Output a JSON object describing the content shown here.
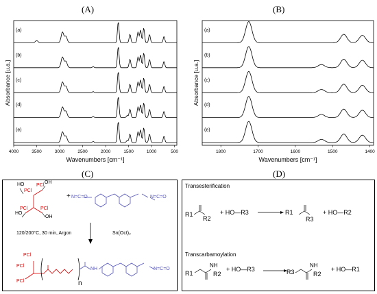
{
  "panels": {
    "A": {
      "letter": "(A)",
      "y_label": "Absorbance [u.a.]",
      "x_label": "Wavenumbers [cm⁻¹]",
      "x_ticks": [
        "4000",
        "3500",
        "3000",
        "2500",
        "2000",
        "1500",
        "1000",
        "500"
      ],
      "traces": [
        "(a)",
        "(b)",
        "(c)",
        "(d)",
        "(e)"
      ]
    },
    "B": {
      "letter": "(B)",
      "y_label": "Absorbance [u.a.]",
      "x_label": "Wavenumbers [cm⁻¹]",
      "x_ticks": [
        "1800",
        "1700",
        "1600",
        "1500",
        "1400"
      ],
      "traces": [
        "(a)",
        "(b)",
        "(c)",
        "(d)",
        "(e)"
      ]
    },
    "C": {
      "letter": "(C)",
      "pcl": "PCl",
      "oh": "HO",
      "oh2": "OH",
      "plus": "+",
      "conditions": "120/200°C, 30 min, Argon",
      "catalyst": "Sn(Oct)₂",
      "n": "n",
      "nh": "NH",
      "nco": "N=C=O"
    },
    "D": {
      "letter": "(D)",
      "transesterification": "Transesterification",
      "transcarbamoylation": "Transcarbamoylation",
      "r1": "R1",
      "r2": "R2",
      "r3": "R3",
      "ho_r3": "+ HO—R3",
      "ho_r2": "+ HO—R2",
      "ho_r1": "+ HO—R1",
      "nh": "NH"
    }
  },
  "chart_data": [
    {
      "type": "line",
      "title": "(A)",
      "xlabel": "Wavenumbers [cm⁻¹]",
      "ylabel": "Absorbance [u.a.]",
      "xlim": [
        4000,
        450
      ],
      "x_reversed": true,
      "series": [
        {
          "name": "(a)",
          "peaks": [
            [
              3500,
              0.1
            ],
            [
              2940,
              0.5
            ],
            [
              2865,
              0.3
            ],
            [
              1725,
              1.0
            ],
            [
              1470,
              0.4
            ],
            [
              1295,
              0.5
            ],
            [
              1240,
              0.6
            ],
            [
              1170,
              0.7
            ],
            [
              1045,
              0.4
            ],
            [
              730,
              0.3
            ]
          ]
        },
        {
          "name": "(b)",
          "peaks": [
            [
              2940,
              0.5
            ],
            [
              2865,
              0.3
            ],
            [
              2270,
              0.05
            ],
            [
              1725,
              1.0
            ],
            [
              1470,
              0.4
            ],
            [
              1295,
              0.5
            ],
            [
              1240,
              0.6
            ],
            [
              1170,
              0.7
            ],
            [
              1045,
              0.4
            ],
            [
              730,
              0.3
            ]
          ]
        },
        {
          "name": "(c)",
          "peaks": [
            [
              2940,
              0.5
            ],
            [
              2865,
              0.3
            ],
            [
              2270,
              0.05
            ],
            [
              1725,
              1.0
            ],
            [
              1470,
              0.4
            ],
            [
              1295,
              0.5
            ],
            [
              1240,
              0.6
            ],
            [
              1170,
              0.7
            ],
            [
              1045,
              0.4
            ],
            [
              730,
              0.3
            ]
          ]
        },
        {
          "name": "(d)",
          "peaks": [
            [
              2940,
              0.5
            ],
            [
              2865,
              0.3
            ],
            [
              2270,
              0.05
            ],
            [
              1725,
              1.0
            ],
            [
              1530,
              0.1
            ],
            [
              1470,
              0.4
            ],
            [
              1295,
              0.5
            ],
            [
              1240,
              0.6
            ],
            [
              1170,
              0.7
            ],
            [
              1045,
              0.4
            ],
            [
              730,
              0.3
            ]
          ]
        },
        {
          "name": "(e)",
          "peaks": [
            [
              2940,
              0.5
            ],
            [
              2865,
              0.3
            ],
            [
              2270,
              0.05
            ],
            [
              1725,
              1.0
            ],
            [
              1530,
              0.1
            ],
            [
              1470,
              0.4
            ],
            [
              1295,
              0.5
            ],
            [
              1240,
              0.6
            ],
            [
              1170,
              0.7
            ],
            [
              1045,
              0.4
            ],
            [
              730,
              0.3
            ]
          ]
        }
      ]
    },
    {
      "type": "line",
      "title": "(B)",
      "xlabel": "Wavenumbers [cm⁻¹]",
      "ylabel": "Absorbance [u.a.]",
      "xlim": [
        1850,
        1390
      ],
      "x_reversed": true,
      "series": [
        {
          "name": "(a)",
          "peaks": [
            [
              1725,
              1.0
            ],
            [
              1470,
              0.4
            ],
            [
              1420,
              0.35
            ]
          ]
        },
        {
          "name": "(b)",
          "peaks": [
            [
              1725,
              1.0
            ],
            [
              1530,
              0.15
            ],
            [
              1470,
              0.4
            ],
            [
              1420,
              0.35
            ]
          ]
        },
        {
          "name": "(c)",
          "peaks": [
            [
              1725,
              1.0
            ],
            [
              1530,
              0.15
            ],
            [
              1470,
              0.4
            ],
            [
              1420,
              0.35
            ]
          ]
        },
        {
          "name": "(d)",
          "peaks": [
            [
              1725,
              1.0
            ],
            [
              1530,
              0.15
            ],
            [
              1470,
              0.4
            ],
            [
              1420,
              0.35
            ]
          ]
        },
        {
          "name": "(e)",
          "peaks": [
            [
              1725,
              1.0
            ],
            [
              1530,
              0.15
            ],
            [
              1470,
              0.4
            ],
            [
              1420,
              0.35
            ]
          ]
        }
      ]
    }
  ]
}
